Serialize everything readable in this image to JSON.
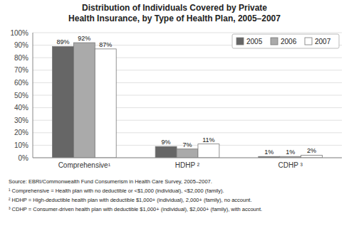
{
  "chart_data": {
    "type": "bar",
    "title": "Distribution of Individuals Covered by Private\nHealth Insurance, by Type of Health Plan, 2005–2007",
    "categories": [
      "Comprehensive¹",
      "HDHP ²",
      "CDHP ³"
    ],
    "series": [
      {
        "name": "2005",
        "color": "#666666",
        "values": [
          89,
          9,
          1
        ],
        "value_labels": [
          "89%",
          "9%",
          "1%"
        ]
      },
      {
        "name": "2006",
        "color": "#aaaaaa",
        "values": [
          92,
          7,
          1
        ],
        "value_labels": [
          "92%",
          "7%",
          "1%"
        ]
      },
      {
        "name": "2007",
        "color": "#ffffff",
        "values": [
          87,
          11,
          2
        ],
        "value_labels": [
          "87%",
          "11%",
          "2%"
        ]
      }
    ],
    "ylim": [
      0,
      100
    ],
    "yticks": [
      {
        "value": 0,
        "label": "0%"
      },
      {
        "value": 10,
        "label": "10%"
      },
      {
        "value": 20,
        "label": "20%"
      },
      {
        "value": 30,
        "label": "30%"
      },
      {
        "value": 40,
        "label": "40%"
      },
      {
        "value": 50,
        "label": "50%"
      },
      {
        "value": 60,
        "label": "60%"
      },
      {
        "value": 70,
        "label": "70%"
      },
      {
        "value": 80,
        "label": "80%"
      },
      {
        "value": 90,
        "label": "90%"
      },
      {
        "value": 100,
        "label": "100%"
      }
    ],
    "grid": true,
    "legend": "upper right",
    "data_labels": true,
    "annotations": [
      "Source: EBRI/Commonwealth Fund Consumerism in Health Care Survey, 2005–2007.",
      "¹ Comprehensive = Health plan with no deductible or <$1,000 (individual), <$2,000 (family).",
      "² HDHP = High-deductible health plan with deductible $1,000+ (individual), 2,000+ (family), no account.",
      "³ CDHP = Consumer-driven health plan with deductible $1,000+ (individual), $2,000+ (family), with account."
    ]
  }
}
